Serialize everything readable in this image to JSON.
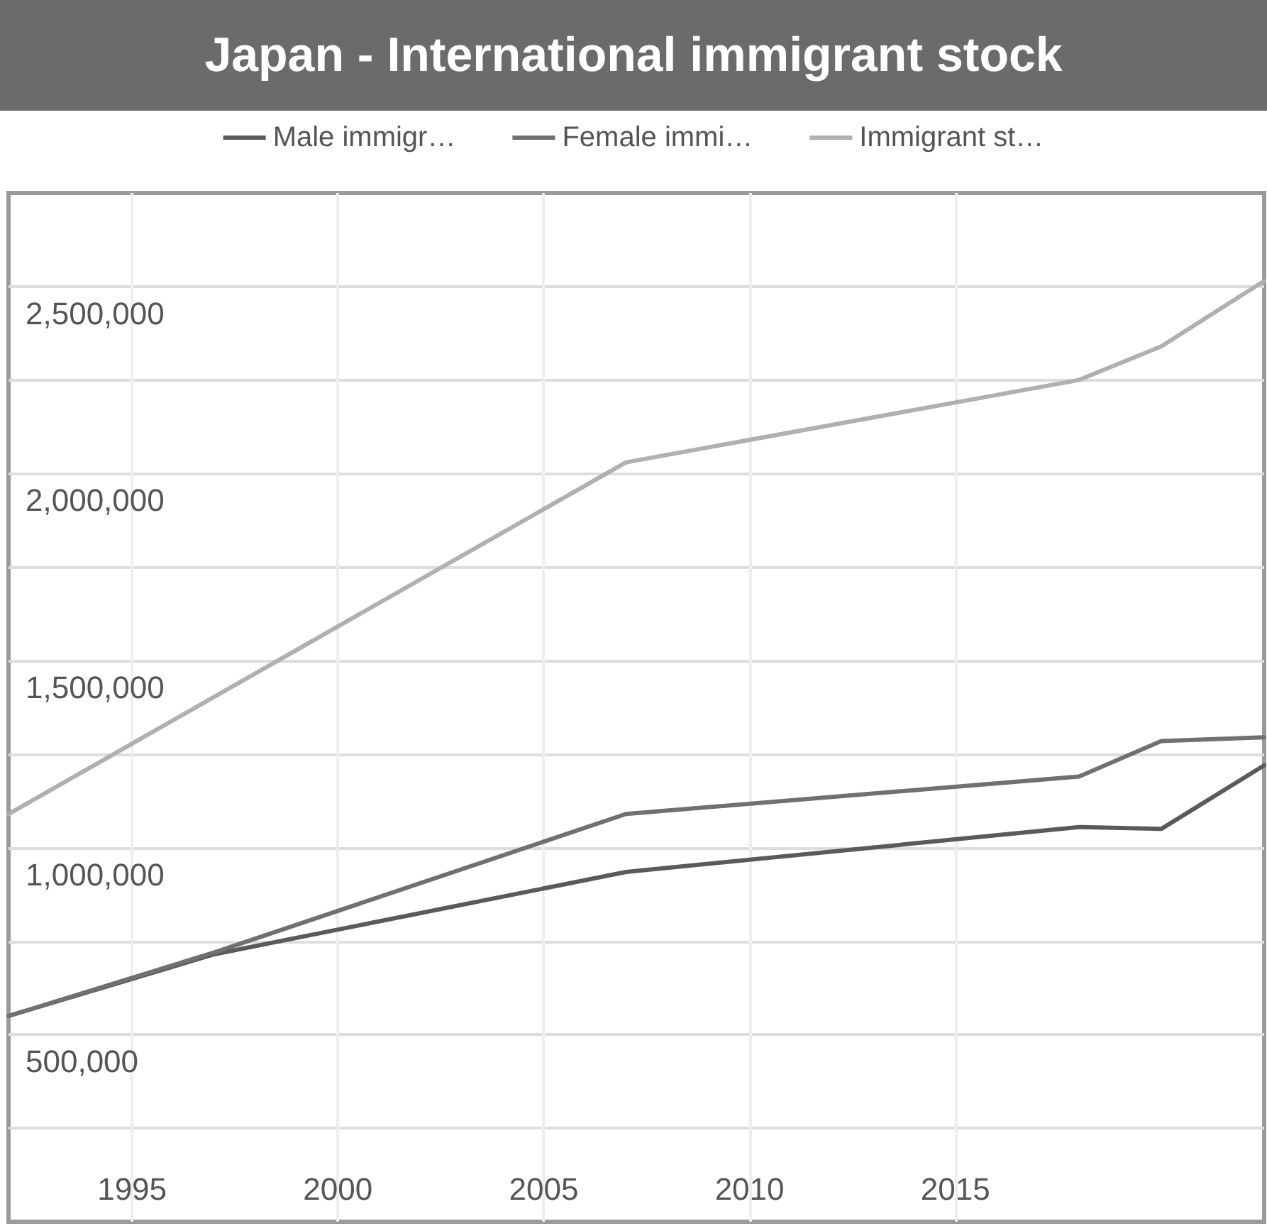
{
  "chart_data": {
    "type": "line",
    "title": "Japan - International immigrant stock",
    "xlim": [
      1992,
      2022.5
    ],
    "xticks": [
      1995,
      2000,
      2005,
      2010,
      2015
    ],
    "ylim": [
      0,
      2750000
    ],
    "yticks": [
      {
        "value": 250000,
        "label": null
      },
      {
        "value": 500000,
        "label": "500,000"
      },
      {
        "value": 750000,
        "label": null
      },
      {
        "value": 1000000,
        "label": "1,000,000"
      },
      {
        "value": 1250000,
        "label": null
      },
      {
        "value": 1500000,
        "label": "1,500,000"
      },
      {
        "value": 1750000,
        "label": null
      },
      {
        "value": 2000000,
        "label": "2,000,000"
      },
      {
        "value": 2250000,
        "label": null
      },
      {
        "value": 2500000,
        "label": "2,500,000"
      }
    ],
    "series": [
      {
        "name": "Male immigr…",
        "color": "#5a5a5a",
        "x": [
          1992,
          1997,
          2007,
          2018,
          2020,
          2022.5
        ],
        "values": [
          550000,
          715000,
          935000,
          1055000,
          1050000,
          1220000
        ]
      },
      {
        "name": "Female immi…",
        "color": "#707070",
        "x": [
          1992,
          1997,
          2007,
          2018,
          2020,
          2022.5
        ],
        "values": [
          550000,
          720000,
          1090000,
          1190000,
          1285000,
          1295000
        ]
      },
      {
        "name": "Immigrant st…",
        "color": "#b0b0b0",
        "x": [
          1992,
          2007,
          2018,
          2020,
          2022.5
        ],
        "values": [
          1090000,
          2030000,
          2250000,
          2340000,
          2515000
        ]
      }
    ],
    "grid": true,
    "legend": "top",
    "marker": "none",
    "line_style": "solid"
  }
}
